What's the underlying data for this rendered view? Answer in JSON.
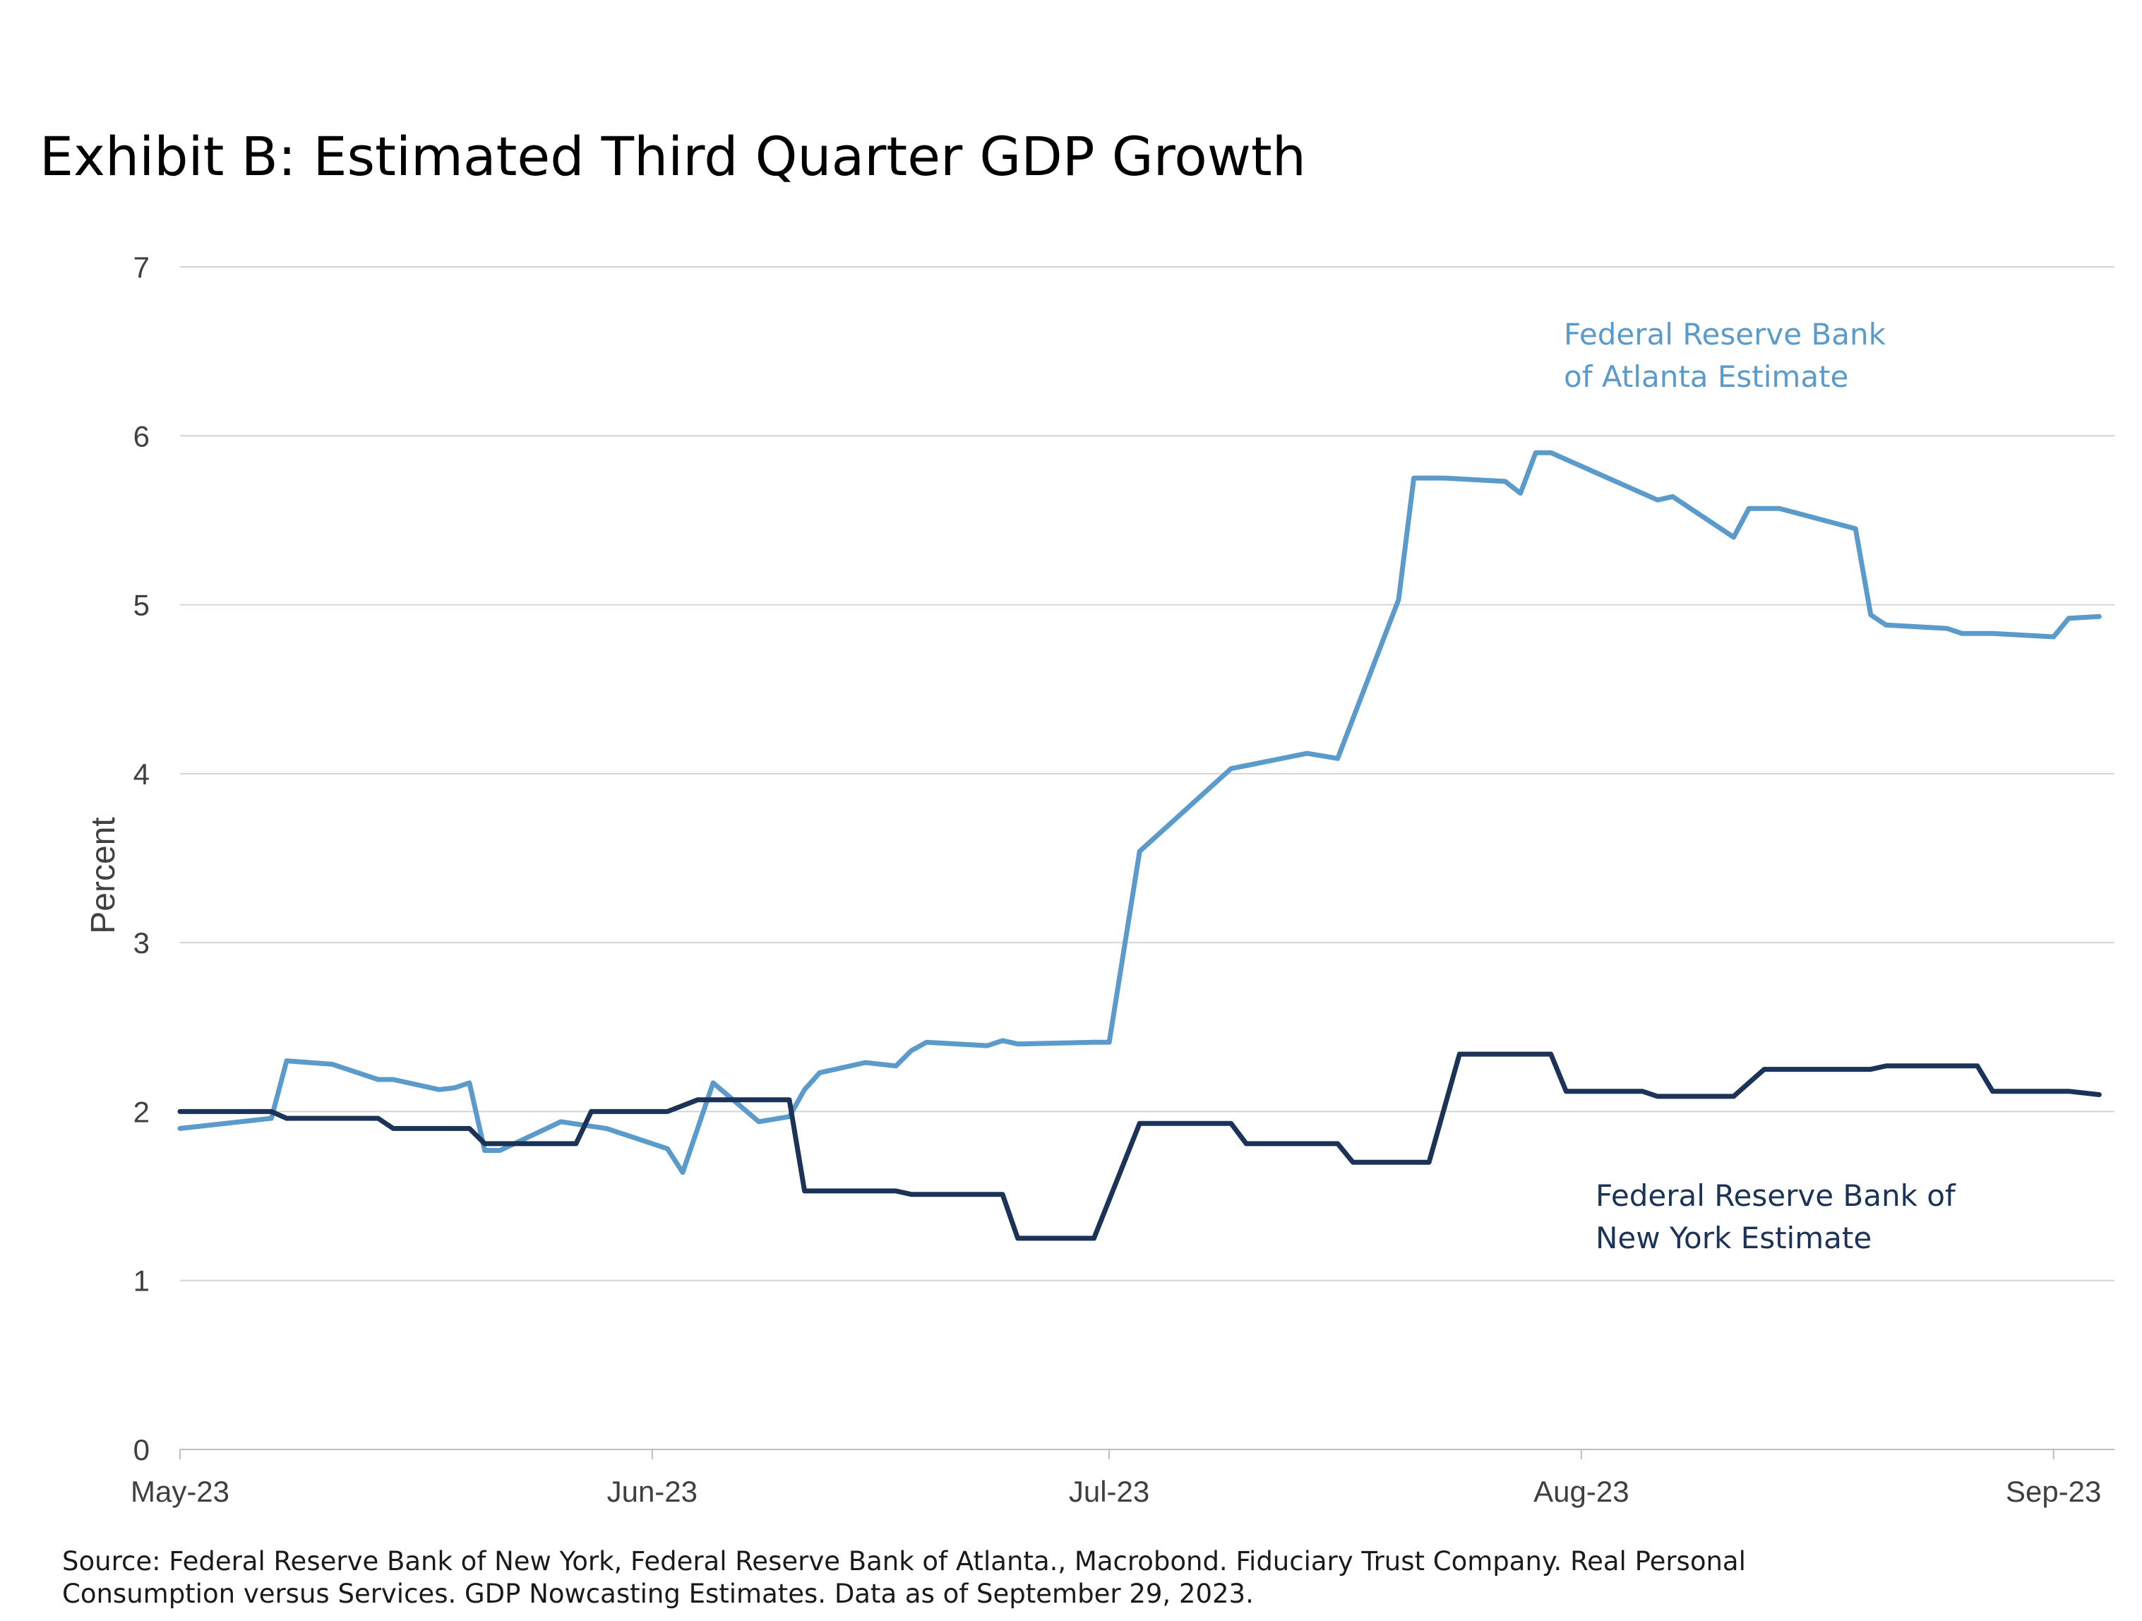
{
  "chart_data": {
    "type": "line",
    "title": "Exhibit B: Estimated Third Quarter GDP Growth",
    "ylabel": "Percent",
    "xlabel": "",
    "ylim": [
      0,
      7
    ],
    "yticks": [
      0,
      1,
      2,
      3,
      4,
      5,
      6,
      7
    ],
    "xlim": [
      "2023-05-01",
      "2023-09-05"
    ],
    "xticks": [
      {
        "date": "2023-05-01",
        "label": "May-23"
      },
      {
        "date": "2023-06-01",
        "label": "Jun-23"
      },
      {
        "date": "2023-07-01",
        "label": "Jul-23"
      },
      {
        "date": "2023-08-01",
        "label": "Aug-23"
      },
      {
        "date": "2023-09-01",
        "label": "Sep-23"
      }
    ],
    "grid": true,
    "legend": "inline labels",
    "series": [
      {
        "name": "Federal Reserve Bank of Atlanta Estimate",
        "label_lines": [
          "Federal Reserve Bank",
          "of Atlanta Estimate"
        ],
        "color": "#5b9bcb",
        "points": [
          [
            "2023-05-01",
            1.9
          ],
          [
            "2023-05-07",
            1.96
          ],
          [
            "2023-05-08",
            2.3
          ],
          [
            "2023-05-11",
            2.28
          ],
          [
            "2023-05-14",
            2.19
          ],
          [
            "2023-05-15",
            2.19
          ],
          [
            "2023-05-18",
            2.13
          ],
          [
            "2023-05-19",
            2.14
          ],
          [
            "2023-05-20",
            2.17
          ],
          [
            "2023-05-21",
            1.77
          ],
          [
            "2023-05-22",
            1.77
          ],
          [
            "2023-05-26",
            1.94
          ],
          [
            "2023-05-29",
            1.9
          ],
          [
            "2023-06-02",
            1.78
          ],
          [
            "2023-06-03",
            1.64
          ],
          [
            "2023-06-05",
            2.17
          ],
          [
            "2023-06-08",
            1.94
          ],
          [
            "2023-06-10",
            1.97
          ],
          [
            "2023-06-11",
            2.13
          ],
          [
            "2023-06-12",
            2.23
          ],
          [
            "2023-06-15",
            2.29
          ],
          [
            "2023-06-17",
            2.27
          ],
          [
            "2023-06-18",
            2.36
          ],
          [
            "2023-06-19",
            2.41
          ],
          [
            "2023-06-23",
            2.39
          ],
          [
            "2023-06-24",
            2.42
          ],
          [
            "2023-06-25",
            2.4
          ],
          [
            "2023-06-30",
            2.41
          ],
          [
            "2023-07-01",
            2.41
          ],
          [
            "2023-07-03",
            3.54
          ],
          [
            "2023-07-09",
            4.03
          ],
          [
            "2023-07-14",
            4.12
          ],
          [
            "2023-07-16",
            4.09
          ],
          [
            "2023-07-20",
            5.03
          ],
          [
            "2023-07-21",
            5.75
          ],
          [
            "2023-07-23",
            5.75
          ],
          [
            "2023-07-27",
            5.73
          ],
          [
            "2023-07-28",
            5.66
          ],
          [
            "2023-07-29",
            5.9
          ],
          [
            "2023-07-30",
            5.9
          ],
          [
            "2023-08-06",
            5.62
          ],
          [
            "2023-08-07",
            5.64
          ],
          [
            "2023-08-11",
            5.4
          ],
          [
            "2023-08-12",
            5.57
          ],
          [
            "2023-08-14",
            5.57
          ],
          [
            "2023-08-19",
            5.45
          ],
          [
            "2023-08-20",
            4.94
          ],
          [
            "2023-08-21",
            4.88
          ],
          [
            "2023-08-25",
            4.86
          ],
          [
            "2023-08-26",
            4.83
          ],
          [
            "2023-08-28",
            4.83
          ],
          [
            "2023-09-01",
            4.81
          ],
          [
            "2023-09-02",
            4.92
          ],
          [
            "2023-09-04",
            4.93
          ]
        ]
      },
      {
        "name": "Federal Reserve Bank of New York Estimate",
        "label_lines": [
          "Federal Reserve Bank of",
          "New York Estimate"
        ],
        "color": "#1c3358",
        "points": [
          [
            "2023-05-01",
            2.0
          ],
          [
            "2023-05-07",
            2.0
          ],
          [
            "2023-05-08",
            1.96
          ],
          [
            "2023-05-14",
            1.96
          ],
          [
            "2023-05-15",
            1.9
          ],
          [
            "2023-05-20",
            1.9
          ],
          [
            "2023-05-21",
            1.81
          ],
          [
            "2023-05-27",
            1.81
          ],
          [
            "2023-05-28",
            2.0
          ],
          [
            "2023-06-02",
            2.0
          ],
          [
            "2023-06-04",
            2.07
          ],
          [
            "2023-06-10",
            2.07
          ],
          [
            "2023-06-11",
            1.53
          ],
          [
            "2023-06-17",
            1.53
          ],
          [
            "2023-06-18",
            1.51
          ],
          [
            "2023-06-24",
            1.51
          ],
          [
            "2023-06-25",
            1.25
          ],
          [
            "2023-06-30",
            1.25
          ],
          [
            "2023-07-03",
            1.93
          ],
          [
            "2023-07-09",
            1.93
          ],
          [
            "2023-07-10",
            1.81
          ],
          [
            "2023-07-16",
            1.81
          ],
          [
            "2023-07-17",
            1.7
          ],
          [
            "2023-07-22",
            1.7
          ],
          [
            "2023-07-24",
            2.34
          ],
          [
            "2023-07-30",
            2.34
          ],
          [
            "2023-07-31",
            2.12
          ],
          [
            "2023-08-05",
            2.12
          ],
          [
            "2023-08-06",
            2.09
          ],
          [
            "2023-08-11",
            2.09
          ],
          [
            "2023-08-13",
            2.25
          ],
          [
            "2023-08-20",
            2.25
          ],
          [
            "2023-08-21",
            2.27
          ],
          [
            "2023-08-27",
            2.27
          ],
          [
            "2023-08-28",
            2.12
          ],
          [
            "2023-09-02",
            2.12
          ],
          [
            "2023-09-04",
            2.1
          ]
        ]
      }
    ],
    "source_lines": [
      "Source: Federal Reserve Bank of New York, Federal Reserve Bank of Atlanta., Macrobond. Fiduciary Trust Company. Real Personal",
      "Consumption versus Services. GDP Nowcasting Estimates. Data as of September 29, 2023."
    ]
  }
}
